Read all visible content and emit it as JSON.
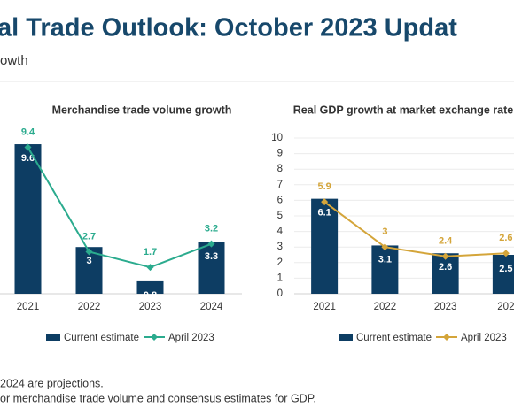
{
  "header": {
    "title": "al Trade Outlook: October 2023 Updat",
    "subtitle": "owth"
  },
  "chart_data": [
    {
      "type": "combo",
      "title": "Merchandise trade volume growth",
      "categories": [
        "2021",
        "2022",
        "2023",
        "2024"
      ],
      "ylim": [
        0,
        10
      ],
      "series": [
        {
          "name": "Current estimate",
          "type": "bar",
          "color": "#0d3d63",
          "values": [
            9.6,
            3.0,
            0.8,
            3.3
          ]
        },
        {
          "name": "April 2023",
          "type": "line",
          "color": "#2bab8e",
          "values": [
            9.4,
            2.7,
            1.7,
            3.2
          ]
        }
      ]
    },
    {
      "type": "combo",
      "title": "Real GDP growth at market exchange rate",
      "categories": [
        "2021",
        "2022",
        "2023",
        "202"
      ],
      "ylim": [
        0,
        10
      ],
      "yticks": [
        0,
        1,
        2,
        3,
        4,
        5,
        6,
        7,
        8,
        9,
        10
      ],
      "series": [
        {
          "name": "Current estimate",
          "type": "bar",
          "color": "#0d3d63",
          "values": [
            6.1,
            3.1,
            2.6,
            2.5
          ]
        },
        {
          "name": "April 2023",
          "type": "line",
          "color": "#d4a53a",
          "values": [
            5.9,
            3.0,
            2.4,
            2.6
          ]
        }
      ]
    }
  ],
  "notes": [
    "2024 are projections.",
    "or merchandise trade volume and consensus estimates for GDP."
  ]
}
